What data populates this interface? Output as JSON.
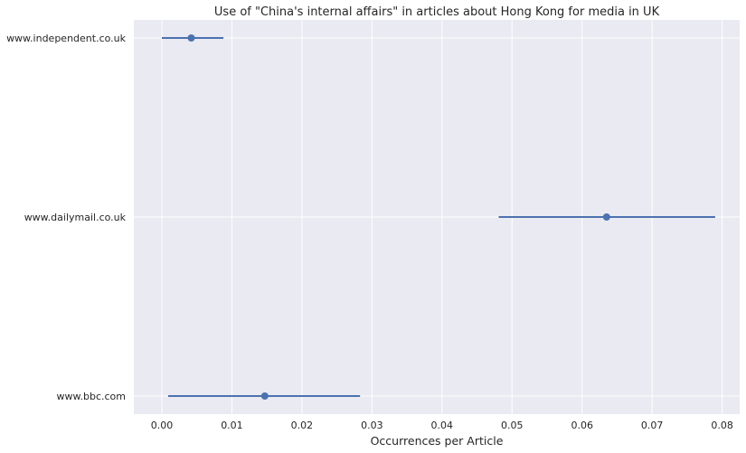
{
  "chart_data": {
    "type": "scatter",
    "title": "Use of \"China's internal affairs\" in articles about Hong Kong for media in UK",
    "xlabel": "Occurrences per Article",
    "ylabel": "",
    "categories": [
      "www.independent.co.uk",
      "www.dailymail.co.uk",
      "www.bbc.com"
    ],
    "points": [
      {
        "category": "www.independent.co.uk",
        "value": 0.0042,
        "ci": [
          0.0,
          0.0088
        ]
      },
      {
        "category": "www.dailymail.co.uk",
        "value": 0.0635,
        "ci": [
          0.0481,
          0.079
        ]
      },
      {
        "category": "www.bbc.com",
        "value": 0.0147,
        "ci": [
          0.0009,
          0.0283
        ]
      }
    ],
    "xlim": [
      -0.004,
      0.0825
    ],
    "xticks": [
      0.0,
      0.01,
      0.02,
      0.03,
      0.04,
      0.05,
      0.06,
      0.07,
      0.08
    ],
    "xtick_labels": [
      "0.00",
      "0.01",
      "0.02",
      "0.03",
      "0.04",
      "0.05",
      "0.06",
      "0.07",
      "0.08"
    ],
    "grid": true,
    "colors": {
      "background": "#eaeaf2",
      "grid": "#ffffff",
      "marker": "#4c72b0"
    }
  }
}
